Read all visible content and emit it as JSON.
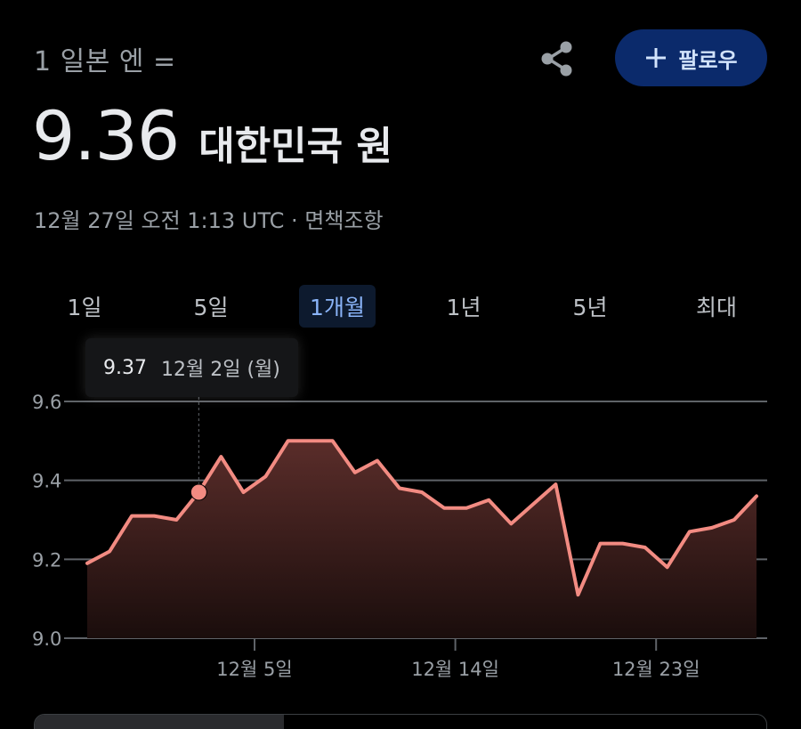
{
  "header": {
    "subtitle": "1 일본 엔 =",
    "share_icon": "share-icon",
    "follow_label": "팔로우",
    "follow_icon": "plus-icon"
  },
  "rate": {
    "value": "9.36",
    "currency": "대한민국 원"
  },
  "timestamp": "12월 27일 오전 1:13 UTC · 면책조항",
  "tabs": [
    {
      "label": "1일",
      "active": false
    },
    {
      "label": "5일",
      "active": false
    },
    {
      "label": "1개월",
      "active": true
    },
    {
      "label": "1년",
      "active": false
    },
    {
      "label": "5년",
      "active": false
    },
    {
      "label": "최대",
      "active": false
    }
  ],
  "tooltip": {
    "value": "9.37",
    "date": "12월 2일 (월)"
  },
  "colors": {
    "line": "#f28b82",
    "fill_top": "#5a2d2a",
    "fill_bottom": "#1a0d0c",
    "grid": "#5f6368",
    "axis_label": "#9aa0a6",
    "follow_bg": "#0b2a6b",
    "active_tab": "#8ab4f8"
  },
  "chart_data": {
    "type": "area",
    "ylim": [
      9.0,
      9.6
    ],
    "yticks": [
      9.6,
      9.4,
      9.2,
      9.0
    ],
    "ytick_labels": [
      "9.6",
      "9.4",
      "9.2",
      "9.0"
    ],
    "xlim": [
      0,
      30
    ],
    "xticks": [
      {
        "x": 7.5,
        "label": "12월 5일"
      },
      {
        "x": 16.5,
        "label": "12월 14일"
      },
      {
        "x": 25.5,
        "label": "12월 23일"
      }
    ],
    "x": [
      0,
      1,
      2,
      3,
      4,
      5,
      6,
      7,
      8,
      9,
      10,
      11,
      12,
      13,
      14,
      15,
      16,
      17,
      18,
      19,
      20,
      21,
      22,
      23,
      24,
      25,
      26,
      27,
      28,
      29,
      30
    ],
    "values": [
      9.19,
      9.22,
      9.31,
      9.31,
      9.3,
      9.37,
      9.46,
      9.37,
      9.41,
      9.5,
      9.5,
      9.5,
      9.42,
      9.45,
      9.38,
      9.37,
      9.33,
      9.33,
      9.35,
      9.29,
      9.34,
      9.39,
      9.11,
      9.24,
      9.24,
      9.23,
      9.18,
      9.27,
      9.28,
      9.3,
      9.36
    ],
    "highlight_index": 5
  }
}
